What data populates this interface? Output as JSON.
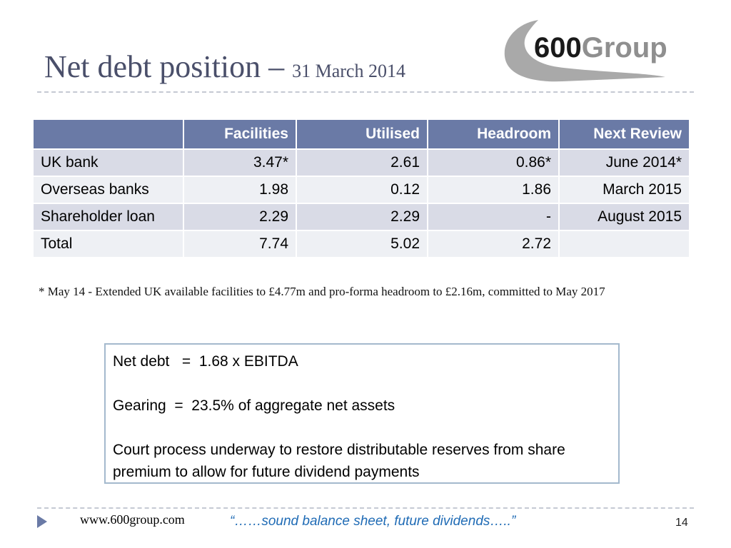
{
  "slide": {
    "title_main": "Net debt position – ",
    "title_sub": "31 March 2014",
    "logo_text": "600Group",
    "logo_num": "600",
    "logo_word": "Group"
  },
  "table": {
    "headers": [
      "",
      "Facilities",
      "Utilised",
      "Headroom",
      "Next Review"
    ],
    "rows": [
      [
        "UK bank",
        "3.47*",
        "2.61",
        "0.86*",
        "June 2014*"
      ],
      [
        "Overseas banks",
        "1.98",
        "0.12",
        "1.86",
        "March 2015"
      ],
      [
        "Shareholder loan",
        "2.29",
        "2.29",
        "-",
        "August 2015"
      ],
      [
        "Total",
        "7.74",
        "5.02",
        "2.72",
        ""
      ]
    ]
  },
  "footnote": "* May 14 - Extended UK available facilities to £4.77m and pro-forma headroom to £2.16m, committed to May 2017",
  "summary": {
    "net_debt": "Net debt   =  1.68 x EBITDA",
    "gearing": "Gearing  =  23.5% of aggregate net assets",
    "court": "Court process underway to restore distributable reserves from share premium to allow for future dividend payments"
  },
  "footer": {
    "url": "www.600group.com",
    "quote": "“……sound balance sheet, future dividends…..”",
    "page": "14"
  },
  "colors": {
    "header_fill": "#6a7aa6",
    "row_dark": "#d9dbe6",
    "row_light": "#eef0f4",
    "title": "#4a4f6a",
    "quote": "#1f6bb5",
    "box_border": "#a4b9cd"
  }
}
